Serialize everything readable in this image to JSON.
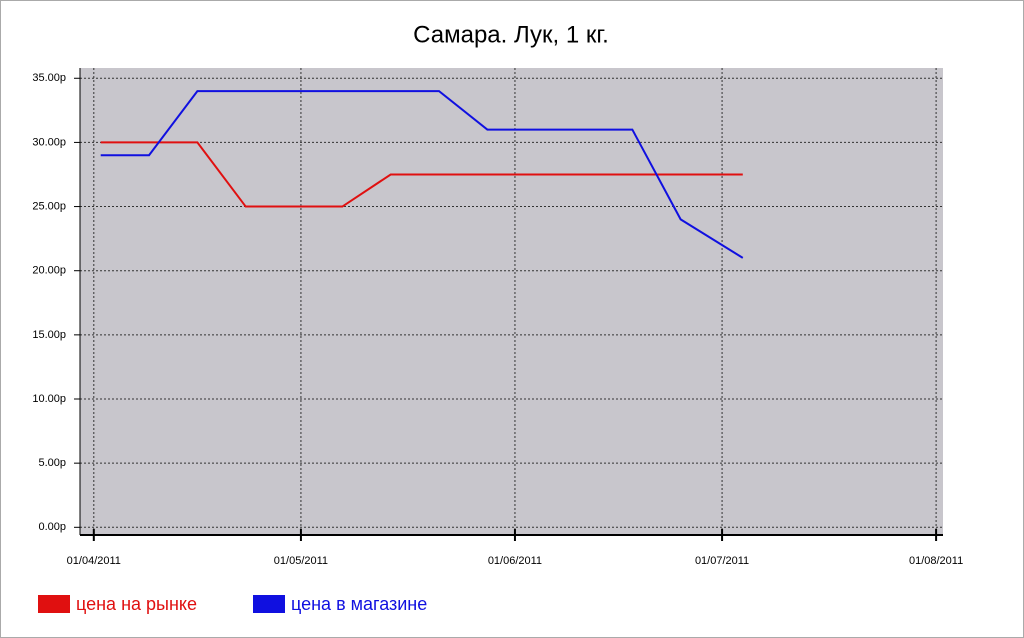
{
  "chart_data": {
    "type": "line",
    "title": "Самара. Лук, 1 кг.",
    "x": [
      "02/04/2011",
      "09/04/2011",
      "16/04/2011",
      "23/04/2011",
      "30/04/2011",
      "07/05/2011",
      "14/05/2011",
      "21/05/2011",
      "28/05/2011",
      "04/06/2011",
      "11/06/2011",
      "18/06/2011",
      "25/06/2011",
      "04/07/2011"
    ],
    "series": [
      {
        "name": "цена на рынке",
        "color": "#e01010",
        "values": [
          30,
          30,
          30,
          25,
          25,
          25,
          27.5,
          27.5,
          27.5,
          27.5,
          27.5,
          27.5,
          27.5,
          27.5
        ]
      },
      {
        "name": "цена в магазине",
        "color": "#1010e0",
        "values": [
          29,
          29,
          34,
          34,
          34,
          34,
          34,
          34,
          31,
          31,
          31,
          31,
          24,
          21
        ]
      }
    ],
    "xlim": [
      "30/03/2011",
      "02/08/2011"
    ],
    "xticks": [
      "01/04/2011",
      "01/05/2011",
      "01/06/2011",
      "01/07/2011",
      "01/08/2011"
    ],
    "ylim": [
      -0.6,
      35.8
    ],
    "yticks": [
      {
        "value": 0,
        "label": "0.00р"
      },
      {
        "value": 5,
        "label": "5.00р"
      },
      {
        "value": 10,
        "label": "10.00р"
      },
      {
        "value": 15,
        "label": "15.00р"
      },
      {
        "value": 20,
        "label": "20.00р"
      },
      {
        "value": 25,
        "label": "25.00р"
      },
      {
        "value": 30,
        "label": "30.00р"
      },
      {
        "value": 35,
        "label": "35.00р"
      }
    ],
    "grid": true,
    "legend": "bottom-left"
  }
}
